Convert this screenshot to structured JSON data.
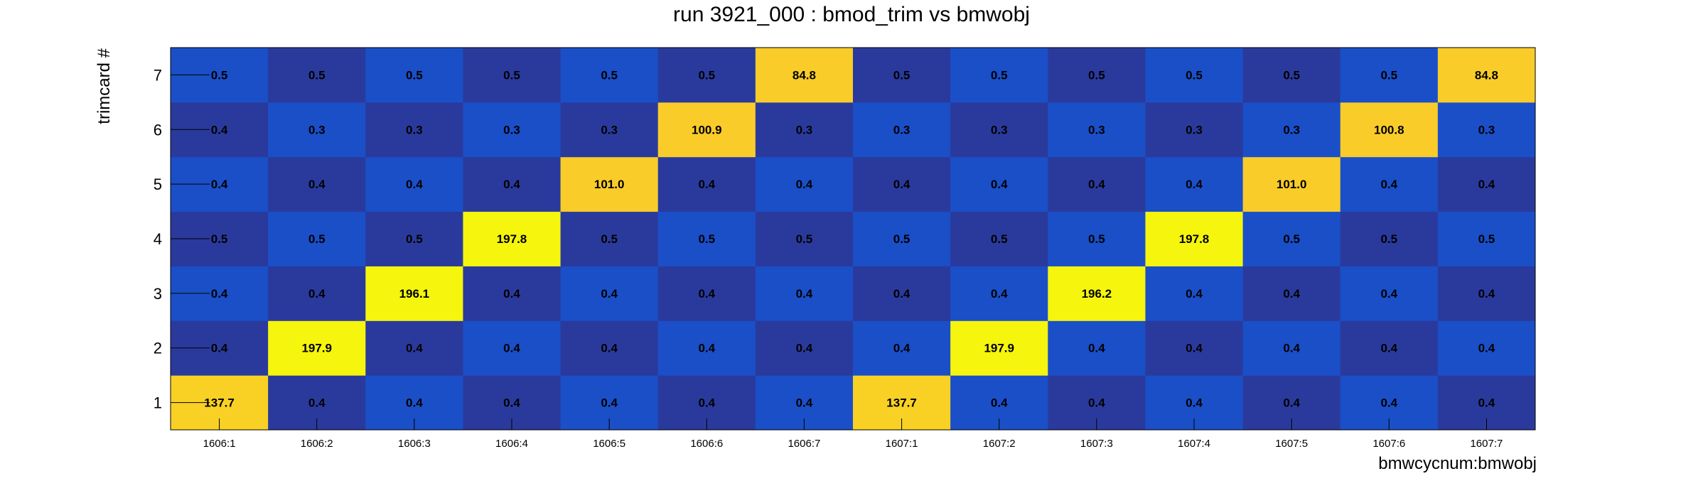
{
  "chart_data": {
    "type": "heatmap",
    "title": "run 3921_000 : bmod_trim vs bmwobj",
    "xlabel": "bmwcycnum:bmwobj",
    "ylabel": "trimcard #",
    "x_categories": [
      "1606:1",
      "1606:2",
      "1606:3",
      "1606:4",
      "1606:5",
      "1606:6",
      "1606:7",
      "1607:1",
      "1607:2",
      "1607:3",
      "1607:4",
      "1607:5",
      "1607:6",
      "1607:7"
    ],
    "y_categories": [
      "1",
      "2",
      "3",
      "4",
      "5",
      "6",
      "7"
    ],
    "values": [
      [
        137.7,
        0.4,
        0.4,
        0.4,
        0.4,
        0.4,
        0.4,
        137.7,
        0.4,
        0.4,
        0.4,
        0.4,
        0.4,
        0.4
      ],
      [
        0.4,
        197.9,
        0.4,
        0.4,
        0.4,
        0.4,
        0.4,
        0.4,
        197.9,
        0.4,
        0.4,
        0.4,
        0.4,
        0.4
      ],
      [
        0.4,
        0.4,
        196.1,
        0.4,
        0.4,
        0.4,
        0.4,
        0.4,
        0.4,
        196.2,
        0.4,
        0.4,
        0.4,
        0.4
      ],
      [
        0.5,
        0.5,
        0.5,
        197.8,
        0.5,
        0.5,
        0.5,
        0.5,
        0.5,
        0.5,
        197.8,
        0.5,
        0.5,
        0.5
      ],
      [
        0.4,
        0.4,
        0.4,
        0.4,
        101.0,
        0.4,
        0.4,
        0.4,
        0.4,
        0.4,
        0.4,
        101.0,
        0.4,
        0.4
      ],
      [
        0.4,
        0.3,
        0.3,
        0.3,
        0.3,
        100.9,
        0.3,
        0.3,
        0.3,
        0.3,
        0.3,
        0.3,
        100.8,
        0.3
      ],
      [
        0.5,
        0.5,
        0.5,
        0.5,
        0.5,
        0.5,
        84.8,
        0.5,
        0.5,
        0.5,
        0.5,
        0.5,
        0.5,
        84.8
      ]
    ],
    "value_labels": [
      [
        "137.7",
        "0.4",
        "0.4",
        "0.4",
        "0.4",
        "0.4",
        "0.4",
        "137.7",
        "0.4",
        "0.4",
        "0.4",
        "0.4",
        "0.4",
        "0.4"
      ],
      [
        "0.4",
        "197.9",
        "0.4",
        "0.4",
        "0.4",
        "0.4",
        "0.4",
        "0.4",
        "197.9",
        "0.4",
        "0.4",
        "0.4",
        "0.4",
        "0.4"
      ],
      [
        "0.4",
        "0.4",
        "196.1",
        "0.4",
        "0.4",
        "0.4",
        "0.4",
        "0.4",
        "0.4",
        "196.2",
        "0.4",
        "0.4",
        "0.4",
        "0.4"
      ],
      [
        "0.5",
        "0.5",
        "0.5",
        "197.8",
        "0.5",
        "0.5",
        "0.5",
        "0.5",
        "0.5",
        "0.5",
        "197.8",
        "0.5",
        "0.5",
        "0.5"
      ],
      [
        "0.4",
        "0.4",
        "0.4",
        "0.4",
        "101.0",
        "0.4",
        "0.4",
        "0.4",
        "0.4",
        "0.4",
        "0.4",
        "101.0",
        "0.4",
        "0.4"
      ],
      [
        "0.4",
        "0.3",
        "0.3",
        "0.3",
        "0.3",
        "100.9",
        "0.3",
        "0.3",
        "0.3",
        "0.3",
        "0.3",
        "0.3",
        "100.8",
        "0.3"
      ],
      [
        "0.5",
        "0.5",
        "0.5",
        "0.5",
        "0.5",
        "0.5",
        "84.8",
        "0.5",
        "0.5",
        "0.5",
        "0.5",
        "0.5",
        "0.5",
        "84.8"
      ]
    ],
    "colors": {
      "deep_blue": "#2a3a9c",
      "mid_blue": "#1a4fc8",
      "bright_blue": "#1f5bd0",
      "amber": "#f9cc2a",
      "gold": "#f8d124",
      "yellow": "#f5f50e"
    },
    "grid": false,
    "legend": "none"
  }
}
